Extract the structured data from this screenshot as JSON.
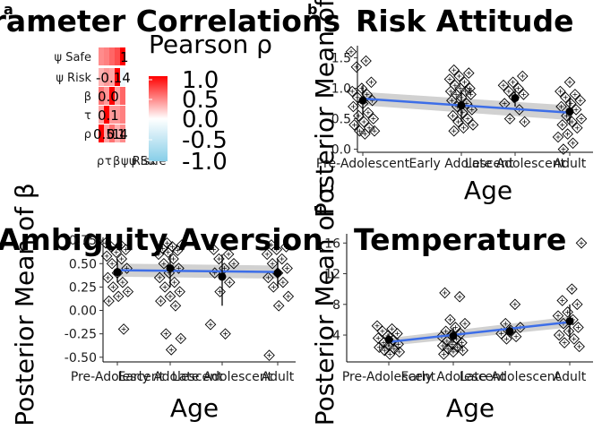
{
  "chart_data": [
    {
      "panel": "a",
      "type": "heatmap",
      "title": "Parameter Correlations",
      "row_labels": [
        "ψ Safe",
        "ψ Risk",
        "β",
        "τ",
        "ρ"
      ],
      "col_labels": [
        "ρ",
        "τ",
        "β",
        "ψ Risk",
        "ψ Safe"
      ],
      "values": [
        [
          0.45,
          0.5,
          0.6,
          0.7,
          1.0
        ],
        [
          0.3,
          0.4,
          0.35,
          1.0,
          -0.14
        ],
        [
          0.55,
          0.4,
          1.0,
          0.35,
          0.6
        ],
        [
          0.35,
          1.0,
          0.4,
          0.4,
          0.5
        ],
        [
          1.0,
          0.35,
          0.55,
          0.3,
          0.45
        ]
      ],
      "visible_cell_text": [
        "1",
        "-0.14",
        "0.0",
        "0.1",
        "0.5",
        "0.4",
        "1",
        "1"
      ],
      "legend_title": "Pearson ρ",
      "legend_ticks": [
        "1.0",
        "0.5",
        "0.0",
        "-0.5",
        "-1.0"
      ],
      "colorscale": [
        "#87cee8",
        "#ffffff",
        "#ff0000"
      ]
    },
    {
      "panel": "b",
      "type": "scatter",
      "title": "Risk Attitude",
      "xlabel": "Age",
      "ylabel": "Posterior Mean of α",
      "categories": [
        "Pre-Adolescent",
        "Early Adolescent",
        "Late Adolescent",
        "Adult"
      ],
      "ylim": [
        -0.05,
        1.7
      ],
      "yticks": [
        "0.0",
        "0.5",
        "1.0",
        "1.5"
      ],
      "points": [
        [
          1,
          1.6
        ],
        [
          1,
          1.45
        ],
        [
          1,
          1.35
        ],
        [
          1,
          1.1
        ],
        [
          1,
          1.0
        ],
        [
          1,
          0.95
        ],
        [
          1,
          0.9
        ],
        [
          1,
          0.85
        ],
        [
          1,
          0.8
        ],
        [
          1,
          0.75
        ],
        [
          1,
          0.7
        ],
        [
          1,
          0.6
        ],
        [
          1,
          0.55
        ],
        [
          1,
          0.5
        ],
        [
          1,
          0.45
        ],
        [
          1,
          0.4
        ],
        [
          1,
          0.35
        ],
        [
          1,
          0.3
        ],
        [
          1,
          0.3
        ],
        [
          1,
          0.25
        ],
        [
          2,
          1.3
        ],
        [
          2,
          1.25
        ],
        [
          2,
          1.2
        ],
        [
          2,
          1.15
        ],
        [
          2,
          1.1
        ],
        [
          2,
          1.05
        ],
        [
          2,
          1.0
        ],
        [
          2,
          1.0
        ],
        [
          2,
          0.95
        ],
        [
          2,
          0.95
        ],
        [
          2,
          0.9
        ],
        [
          2,
          0.9
        ],
        [
          2,
          0.85
        ],
        [
          2,
          0.8
        ],
        [
          2,
          0.75
        ],
        [
          2,
          0.7
        ],
        [
          2,
          0.65
        ],
        [
          2,
          0.6
        ],
        [
          2,
          0.55
        ],
        [
          2,
          0.5
        ],
        [
          2,
          0.45
        ],
        [
          2,
          0.4
        ],
        [
          2,
          0.35
        ],
        [
          2,
          0.3
        ],
        [
          3,
          1.2
        ],
        [
          3,
          1.1
        ],
        [
          3,
          1.05
        ],
        [
          3,
          1.0
        ],
        [
          3,
          0.95
        ],
        [
          3,
          0.9
        ],
        [
          3,
          0.85
        ],
        [
          3,
          0.75
        ],
        [
          3,
          0.65
        ],
        [
          3,
          0.5
        ],
        [
          3,
          0.45
        ],
        [
          4,
          1.1
        ],
        [
          4,
          0.95
        ],
        [
          4,
          0.9
        ],
        [
          4,
          0.85
        ],
        [
          4,
          0.8
        ],
        [
          4,
          0.75
        ],
        [
          4,
          0.7
        ],
        [
          4,
          0.65
        ],
        [
          4,
          0.55
        ],
        [
          4,
          0.5
        ],
        [
          4,
          0.45
        ],
        [
          4,
          0.4
        ],
        [
          4,
          0.35
        ],
        [
          4,
          0.25
        ],
        [
          4,
          0.2
        ],
        [
          4,
          0.1
        ],
        [
          4,
          0.0
        ]
      ],
      "group_means": [
        0.8,
        0.72,
        0.84,
        0.62
      ],
      "group_error": [
        [
          0.55,
          1.05
        ],
        [
          0.45,
          0.95
        ],
        [
          0.7,
          1.0
        ],
        [
          0.4,
          0.85
        ]
      ],
      "fit_line": [
        0.83,
        0.6
      ],
      "fit_band": [
        [
          0.72,
          0.94
        ],
        [
          0.48,
          0.72
        ]
      ]
    },
    {
      "panel": "c",
      "type": "scatter",
      "title": "Ambiguity Aversion",
      "xlabel": "Age",
      "ylabel": "Posterior Mean of β",
      "categories": [
        "Pre-Adolescent",
        "Early Adolescent",
        "Late Adolescent",
        "Adult"
      ],
      "ylim": [
        -0.55,
        0.78
      ],
      "yticks": [
        "0.75",
        "0.50",
        "0.25",
        "0.00",
        "-0.25",
        "-0.50"
      ],
      "points": [
        [
          1,
          0.72
        ],
        [
          1,
          0.7
        ],
        [
          1,
          0.68
        ],
        [
          1,
          0.65
        ],
        [
          1,
          0.62
        ],
        [
          1,
          0.58
        ],
        [
          1,
          0.55
        ],
        [
          1,
          0.5
        ],
        [
          1,
          0.45
        ],
        [
          1,
          0.4
        ],
        [
          1,
          0.35
        ],
        [
          1,
          0.3
        ],
        [
          1,
          0.25
        ],
        [
          1,
          0.2
        ],
        [
          1,
          0.15
        ],
        [
          1,
          0.1
        ],
        [
          1,
          -0.2
        ],
        [
          2,
          0.72
        ],
        [
          2,
          0.7
        ],
        [
          2,
          0.68
        ],
        [
          2,
          0.66
        ],
        [
          2,
          0.64
        ],
        [
          2,
          0.62
        ],
        [
          2,
          0.6
        ],
        [
          2,
          0.55
        ],
        [
          2,
          0.5
        ],
        [
          2,
          0.45
        ],
        [
          2,
          0.4
        ],
        [
          2,
          0.35
        ],
        [
          2,
          0.3
        ],
        [
          2,
          0.25
        ],
        [
          2,
          0.2
        ],
        [
          2,
          0.15
        ],
        [
          2,
          0.1
        ],
        [
          2,
          0.05
        ],
        [
          2,
          -0.25
        ],
        [
          2,
          -0.3
        ],
        [
          2,
          -0.42
        ],
        [
          3,
          0.65
        ],
        [
          3,
          0.6
        ],
        [
          3,
          0.55
        ],
        [
          3,
          0.5
        ],
        [
          3,
          0.45
        ],
        [
          3,
          0.4
        ],
        [
          3,
          0.3
        ],
        [
          3,
          0.2
        ],
        [
          3,
          -0.15
        ],
        [
          3,
          -0.25
        ],
        [
          4,
          0.7
        ],
        [
          4,
          0.68
        ],
        [
          4,
          0.65
        ],
        [
          4,
          0.6
        ],
        [
          4,
          0.55
        ],
        [
          4,
          0.5
        ],
        [
          4,
          0.45
        ],
        [
          4,
          0.4
        ],
        [
          4,
          0.35
        ],
        [
          4,
          0.3
        ],
        [
          4,
          0.25
        ],
        [
          4,
          0.15
        ],
        [
          4,
          0.05
        ],
        [
          4,
          -0.48
        ]
      ],
      "group_means": [
        0.41,
        0.45,
        0.36,
        0.4
      ],
      "group_error": [
        [
          0.3,
          0.55
        ],
        [
          0.25,
          0.6
        ],
        [
          0.05,
          0.6
        ],
        [
          0.25,
          0.55
        ]
      ],
      "fit_line": [
        0.43,
        0.41
      ],
      "fit_band": [
        [
          0.36,
          0.5
        ],
        [
          0.34,
          0.48
        ]
      ]
    },
    {
      "panel": "d",
      "type": "scatter",
      "title": "Temperature",
      "xlabel": "Age",
      "ylabel": "Posterior Mean of τ",
      "categories": [
        "Pre-Adolescent",
        "Early Adolescent",
        "Late Adolescent",
        "Adult"
      ],
      "ylim": [
        0.5,
        17.2
      ],
      "yticks": [
        "16",
        "12",
        "8",
        "4"
      ],
      "points": [
        [
          1,
          5.2
        ],
        [
          1,
          4.8
        ],
        [
          1,
          4.5
        ],
        [
          1,
          4.2
        ],
        [
          1,
          3.9
        ],
        [
          1,
          3.6
        ],
        [
          1,
          3.3
        ],
        [
          1,
          3.0
        ],
        [
          1,
          2.8
        ],
        [
          1,
          2.6
        ],
        [
          1,
          2.4
        ],
        [
          1,
          2.2
        ],
        [
          1,
          2.0
        ],
        [
          1,
          1.8
        ],
        [
          1,
          1.5
        ],
        [
          2,
          9.5
        ],
        [
          2,
          9.0
        ],
        [
          2,
          6.0
        ],
        [
          2,
          5.5
        ],
        [
          2,
          5.0
        ],
        [
          2,
          4.5
        ],
        [
          2,
          4.2
        ],
        [
          2,
          4.0
        ],
        [
          2,
          3.8
        ],
        [
          2,
          3.5
        ],
        [
          2,
          3.2
        ],
        [
          2,
          3.0
        ],
        [
          2,
          2.8
        ],
        [
          2,
          2.6
        ],
        [
          2,
          2.4
        ],
        [
          2,
          2.2
        ],
        [
          2,
          2.0
        ],
        [
          2,
          1.8
        ],
        [
          2,
          1.5
        ],
        [
          3,
          8.0
        ],
        [
          3,
          5.5
        ],
        [
          3,
          5.0
        ],
        [
          3,
          4.6
        ],
        [
          3,
          4.2
        ],
        [
          3,
          3.8
        ],
        [
          3,
          3.5
        ],
        [
          4,
          16.0
        ],
        [
          4,
          10.0
        ],
        [
          4,
          8.5
        ],
        [
          4,
          8.0
        ],
        [
          4,
          7.0
        ],
        [
          4,
          6.5
        ],
        [
          4,
          6.0
        ],
        [
          4,
          5.5
        ],
        [
          4,
          5.0
        ],
        [
          4,
          4.5
        ],
        [
          4,
          4.0
        ],
        [
          4,
          3.5
        ],
        [
          4,
          3.0
        ],
        [
          4,
          2.5
        ]
      ],
      "group_means": [
        3.4,
        3.9,
        4.5,
        5.8
      ],
      "group_error": [
        [
          2.5,
          4.2
        ],
        [
          3.0,
          5.0
        ],
        [
          3.8,
          5.2
        ],
        [
          3.5,
          8.0
        ]
      ],
      "fit_line": [
        3.1,
        5.7
      ],
      "fit_band": [
        [
          2.6,
          3.6
        ],
        [
          5.0,
          6.4
        ]
      ]
    }
  ]
}
